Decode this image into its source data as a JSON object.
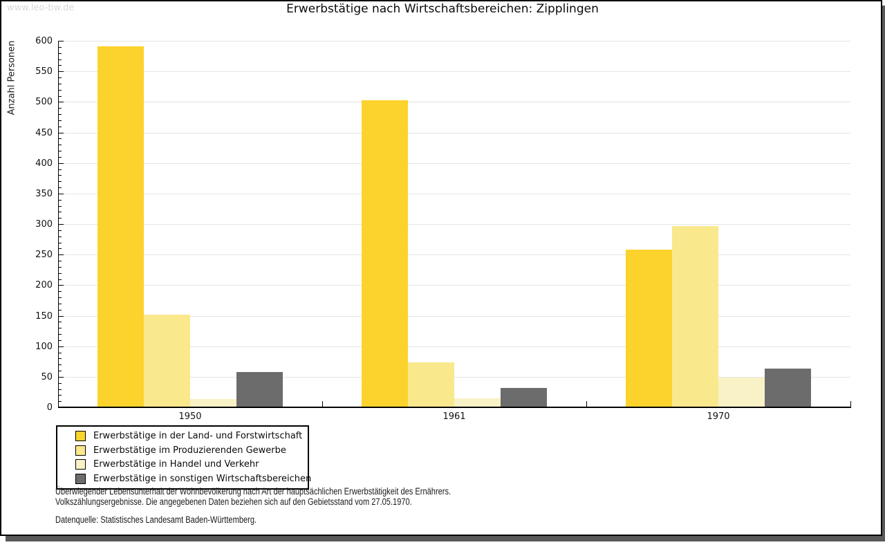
{
  "watermark": "www.leo-bw.de",
  "title": "Erwerbstätige nach Wirtschaftsbereichen: Zipplingen",
  "chart_data": {
    "type": "bar",
    "title": "Erwerbstätige nach Wirtschaftsbereichen: Zipplingen",
    "categories": [
      "1950",
      "1961",
      "1970"
    ],
    "series": [
      {
        "name": "Erwerbstätige in der Land- und Forstwirtschaft",
        "color": "#FCD32D",
        "values": [
          590,
          502,
          257
        ]
      },
      {
        "name": "Erwerbstätige im Produzierenden Gewerbe",
        "color": "#FAE88D",
        "values": [
          150,
          73,
          295
        ]
      },
      {
        "name": "Erwerbstätige in Handel und Verkehr",
        "color": "#F9F2C6",
        "values": [
          13,
          14,
          48
        ]
      },
      {
        "name": "Erwerbstätige in sonstigen Wirtschaftsbereichen",
        "color": "#6C6C6C",
        "values": [
          57,
          31,
          62
        ]
      }
    ],
    "xlabel": "",
    "ylabel": "Anzahl Personen",
    "ylim": [
      0,
      600
    ],
    "ytick_step": 50,
    "yminor_tick_step": 10,
    "grid": true,
    "gridline_color": "#e4e4e4",
    "legend_position": "bottom-left"
  },
  "footer": {
    "line1": "Überwiegender Lebensunterhalt der Wohnbevölkerung nach Art der hauptsächlichen Erwerbstätigkeit des Ernährers.",
    "line2": "Volkszählungsergebnisse. Die angegebenen Daten beziehen sich auf den Gebietsstand vom 27.05.1970.",
    "source": "Datenquelle: Statistisches Landesamt Baden-Württemberg."
  }
}
